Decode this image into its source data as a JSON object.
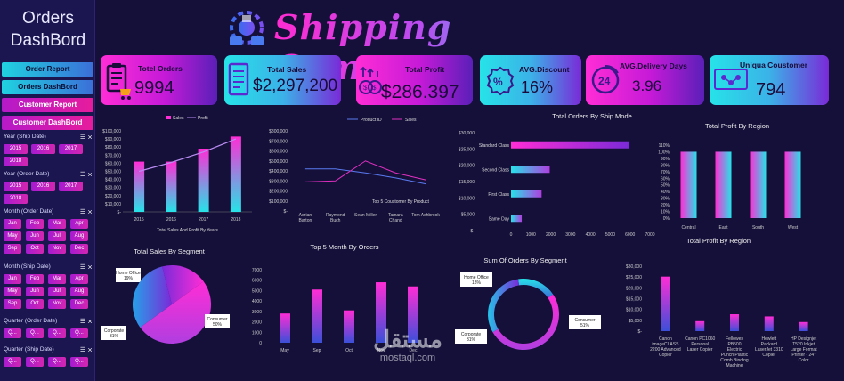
{
  "sidebar": {
    "title_line1": "Orders",
    "title_line2": "DashBord",
    "nav": [
      "Order Report",
      "Orders DashBord",
      "Customer Report",
      "Customer DashBord"
    ],
    "slicers": [
      {
        "title": "Year (Ship Date)",
        "items": [
          "2015",
          "2016",
          "2017",
          "2018"
        ]
      },
      {
        "title": "Year (Order Date)",
        "items": [
          "2015",
          "2016",
          "2017",
          "2018"
        ]
      },
      {
        "title": "Month (Order Date)",
        "items": [
          "Jan",
          "Feb",
          "Mar",
          "Apr",
          "May",
          "Jun",
          "Jul",
          "Aug",
          "Sep",
          "Oct",
          "Nov",
          "Dec"
        ]
      },
      {
        "title": "Month (Ship Date)",
        "items": [
          "Jan",
          "Feb",
          "Mar",
          "Apr",
          "May",
          "Jun",
          "Jul",
          "Aug",
          "Sep",
          "Oct",
          "Nov",
          "Dec"
        ]
      },
      {
        "title": "Quarter (Order Date)",
        "items": [
          "Q...",
          "Q...",
          "Q...",
          "Q..."
        ]
      },
      {
        "title": "Quarter (Ship Date)",
        "items": [
          "Q...",
          "Q...",
          "Q...",
          "Q..."
        ]
      }
    ]
  },
  "header": {
    "title": "Shipping Company"
  },
  "kpis": [
    {
      "label": "Totel Orders",
      "value": "9994"
    },
    {
      "label": "Total Sales",
      "value": "$2,297,200"
    },
    {
      "label": "Total Profit",
      "value": "$286.397"
    },
    {
      "label": "AVG.Discount",
      "value": "16%"
    },
    {
      "label": "AVG.Delivery Days",
      "value": "3.96"
    },
    {
      "label": "Uniqua Coustomer",
      "value": "794"
    }
  ],
  "watermark": {
    "ar": "مستقل",
    "en": "mostaql.com"
  },
  "chart_data": [
    {
      "type": "bar",
      "title": "Total Sales And Profit By Years",
      "legend": [
        "Sales",
        "Profit"
      ],
      "categories": [
        "2015",
        "2016",
        "2017",
        "2018"
      ],
      "y_ticks": [
        "$100,000",
        "$90,000",
        "$80,000",
        "$70,000",
        "$60,000",
        "$50,000",
        "$40,000",
        "$30,000",
        "$20,000",
        "$10,000",
        "$-"
      ],
      "ylim": [
        0,
        100000
      ],
      "series": [
        {
          "name": "Sales",
          "values": [
            62000,
            62000,
            78000,
            93000
          ]
        },
        {
          "name": "Profit",
          "values": [
            50000,
            61000,
            74000,
            90000
          ]
        }
      ]
    },
    {
      "type": "line",
      "title": "Top 5 Coustomer By Product",
      "legend": [
        "Product ID",
        "Sales"
      ],
      "categories": [
        "Adrian Barton",
        "Raymond Buch",
        "Sean Miller",
        "Tamara Chand",
        "Tom Ashbrook"
      ],
      "y_ticks": [
        "$800,000",
        "$700,000",
        "$600,000",
        "$500,000",
        "$400,000",
        "$300,000",
        "$200,000",
        "$100,000",
        "$-"
      ],
      "ylim": [
        0,
        800000
      ],
      "series": [
        {
          "name": "Product ID",
          "values": [
            420000,
            420000,
            380000,
            330000,
            270000
          ]
        },
        {
          "name": "Sales",
          "values": [
            290000,
            300000,
            500000,
            380000,
            310000
          ]
        }
      ]
    },
    {
      "type": "bar",
      "title": "Total Orders By Ship Mode",
      "orientation": "horizontal",
      "categories": [
        "Standard Class",
        "Second Class",
        "First Class",
        "Same Day"
      ],
      "values": [
        5970,
        1950,
        1540,
        540
      ],
      "x_ticks": [
        "0",
        "1000",
        "2000",
        "3000",
        "4000",
        "5000",
        "6000",
        "7000"
      ],
      "xlim": [
        0,
        7000
      ],
      "y_ticks": [
        "$30,000",
        "$25,000",
        "$20,000",
        "$15,000",
        "$10,000",
        "$5,000",
        "$-"
      ]
    },
    {
      "type": "bar",
      "title": "Total Profit By Region",
      "categories": [
        "Central",
        "East",
        "South",
        "West"
      ],
      "values": [
        100,
        100,
        100,
        100
      ],
      "y_ticks": [
        "110%",
        "100%",
        "90%",
        "80%",
        "70%",
        "60%",
        "50%",
        "40%",
        "30%",
        "20%",
        "10%",
        "0%"
      ],
      "ylim": [
        0,
        110
      ]
    },
    {
      "type": "pie",
      "title": "Total Sales By Segment",
      "labels": [
        "Home Office",
        "Consumer",
        "Corporate"
      ],
      "values": [
        19,
        50,
        31
      ],
      "data_labels": [
        "Home Office 19%",
        "Consumer 50%",
        "Corporate 31%"
      ]
    },
    {
      "type": "bar",
      "title": "Top 5 Month By Orders",
      "categories": [
        "May",
        "Sep",
        "Oct",
        "Nov",
        "Dec"
      ],
      "values": [
        2800,
        5100,
        3100,
        5800,
        5400
      ],
      "y_ticks": [
        "7000",
        "6000",
        "5000",
        "4000",
        "3000",
        "2000",
        "1000",
        "0"
      ],
      "ylim": [
        0,
        7000
      ]
    },
    {
      "type": "pie",
      "title": "Sum Of Orders By Segment",
      "donut": true,
      "labels": [
        "Home Office",
        "Consumer",
        "Corporate"
      ],
      "values": [
        18,
        51,
        31
      ],
      "data_labels": [
        "Home Office 18%",
        "Consumer 51%",
        "Corporate 31%"
      ]
    },
    {
      "type": "bar",
      "title": "Total Profit By Region",
      "categories": [
        "Canon imageCLASS 2200 Advanced Copier",
        "Canon PC1060 Personal Laser Copier",
        "Fellowes PB500 Electric Punch Plastic Comb Binding Machine",
        "Hewlett Packard LaserJet 3310 Copier",
        "HP Designjet T520 Inkjet Large Format Printer - 24\" Color"
      ],
      "values": [
        25200,
        4600,
        7800,
        6800,
        4200
      ],
      "y_ticks": [
        "$30,000",
        "$25,000",
        "$20,000",
        "$15,000",
        "$10,000",
        "$5,000",
        "$-"
      ],
      "ylim": [
        0,
        30000
      ]
    }
  ],
  "colors": {
    "bg": "#15103a",
    "magenta": "#ff2dd6",
    "cyan": "#26e3e8",
    "purple": "#7a2ad8"
  }
}
